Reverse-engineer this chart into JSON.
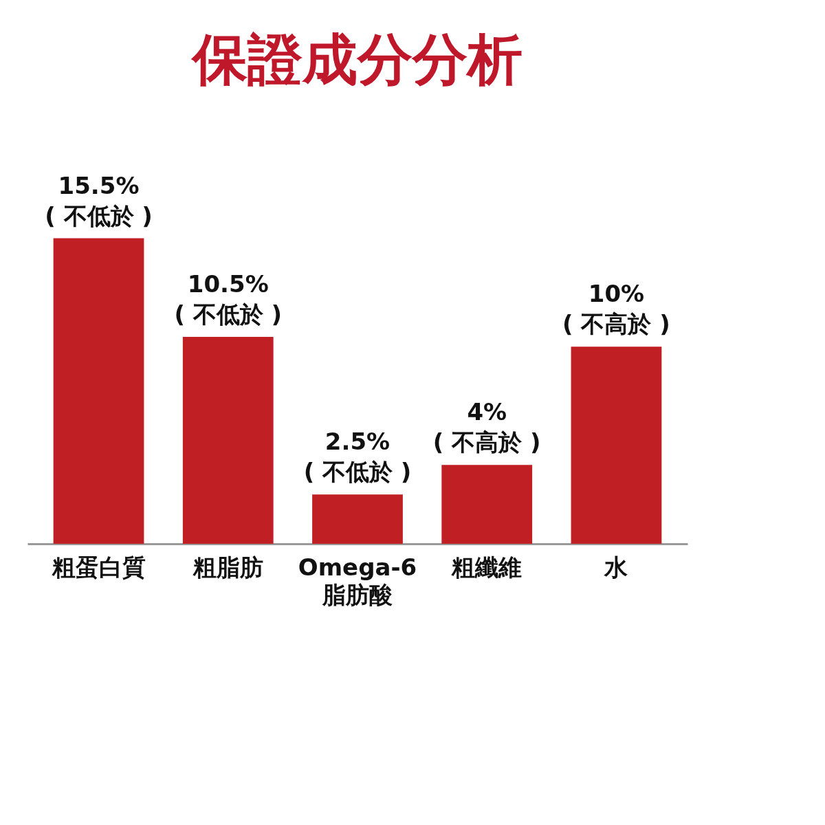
{
  "chart_data": {
    "type": "bar",
    "title": "保證成分分析",
    "categories": [
      "粗蛋白質",
      "粗脂肪",
      "Omega-6\n脂肪酸",
      "粗纖維",
      "水"
    ],
    "values": [
      15.5,
      10.5,
      2.5,
      4,
      10
    ],
    "value_labels": [
      "15.5%\n( 不低於 )",
      "10.5%\n( 不低於 )",
      "2.5%\n( 不低於 )",
      "4%\n( 不高於 )",
      "10%\n( 不高於 )"
    ],
    "color": "#c01f24"
  }
}
